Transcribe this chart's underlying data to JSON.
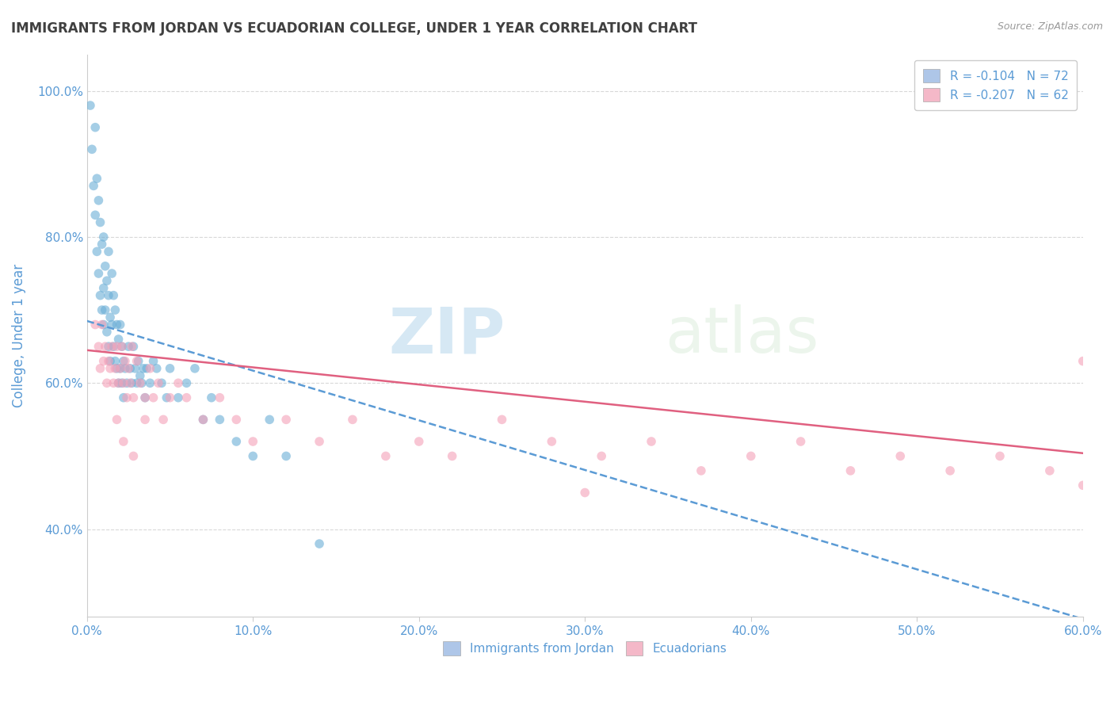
{
  "title": "IMMIGRANTS FROM JORDAN VS ECUADORIAN COLLEGE, UNDER 1 YEAR CORRELATION CHART",
  "source": "Source: ZipAtlas.com",
  "ylabel": "College, Under 1 year",
  "xlim": [
    0.0,
    0.6
  ],
  "ylim": [
    0.28,
    1.05
  ],
  "xticks": [
    0.0,
    0.1,
    0.2,
    0.3,
    0.4,
    0.5,
    0.6
  ],
  "yticks": [
    0.4,
    0.6,
    0.8,
    1.0
  ],
  "xticklabels": [
    "0.0%",
    "10.0%",
    "20.0%",
    "30.0%",
    "40.0%",
    "50.0%",
    "60.0%"
  ],
  "yticklabels": [
    "40.0%",
    "60.0%",
    "80.0%",
    "100.0%"
  ],
  "legend_labels": [
    "R = -0.104   N = 72",
    "R = -0.207   N = 62"
  ],
  "legend_colors": [
    "#aec6e8",
    "#f4b8c8"
  ],
  "series1_color": "#6aaed6",
  "series2_color": "#f4a0b8",
  "trendline1_color": "#5b9bd5",
  "trendline2_color": "#e06080",
  "watermark_text": "ZIP",
  "watermark_text2": "atlas",
  "title_color": "#404040",
  "axis_label_color": "#5b9bd5",
  "tick_label_color": "#5b9bd5",
  "grid_color": "#d8d8d8",
  "jordan_x": [
    0.002,
    0.003,
    0.004,
    0.005,
    0.005,
    0.006,
    0.006,
    0.007,
    0.007,
    0.008,
    0.008,
    0.009,
    0.009,
    0.01,
    0.01,
    0.01,
    0.011,
    0.011,
    0.012,
    0.012,
    0.013,
    0.013,
    0.013,
    0.014,
    0.014,
    0.015,
    0.015,
    0.016,
    0.016,
    0.017,
    0.017,
    0.018,
    0.018,
    0.019,
    0.019,
    0.02,
    0.02,
    0.021,
    0.021,
    0.022,
    0.022,
    0.023,
    0.024,
    0.025,
    0.026,
    0.027,
    0.028,
    0.029,
    0.03,
    0.031,
    0.032,
    0.033,
    0.034,
    0.035,
    0.036,
    0.038,
    0.04,
    0.042,
    0.045,
    0.048,
    0.05,
    0.055,
    0.06,
    0.065,
    0.07,
    0.075,
    0.08,
    0.09,
    0.1,
    0.11,
    0.12,
    0.14
  ],
  "jordan_y": [
    0.98,
    0.92,
    0.87,
    0.95,
    0.83,
    0.88,
    0.78,
    0.85,
    0.75,
    0.82,
    0.72,
    0.79,
    0.7,
    0.8,
    0.73,
    0.68,
    0.76,
    0.7,
    0.74,
    0.67,
    0.72,
    0.65,
    0.78,
    0.69,
    0.63,
    0.75,
    0.68,
    0.72,
    0.65,
    0.7,
    0.63,
    0.68,
    0.62,
    0.66,
    0.6,
    0.68,
    0.62,
    0.65,
    0.6,
    0.63,
    0.58,
    0.62,
    0.6,
    0.65,
    0.62,
    0.6,
    0.65,
    0.62,
    0.6,
    0.63,
    0.61,
    0.6,
    0.62,
    0.58,
    0.62,
    0.6,
    0.63,
    0.62,
    0.6,
    0.58,
    0.62,
    0.58,
    0.6,
    0.62,
    0.55,
    0.58,
    0.55,
    0.52,
    0.5,
    0.55,
    0.5,
    0.38
  ],
  "ecuador_x": [
    0.005,
    0.007,
    0.008,
    0.009,
    0.01,
    0.011,
    0.012,
    0.013,
    0.014,
    0.015,
    0.016,
    0.017,
    0.018,
    0.019,
    0.02,
    0.021,
    0.022,
    0.023,
    0.024,
    0.025,
    0.026,
    0.027,
    0.028,
    0.03,
    0.032,
    0.035,
    0.038,
    0.04,
    0.043,
    0.046,
    0.05,
    0.055,
    0.06,
    0.07,
    0.08,
    0.09,
    0.1,
    0.12,
    0.14,
    0.16,
    0.18,
    0.2,
    0.22,
    0.25,
    0.28,
    0.31,
    0.34,
    0.37,
    0.4,
    0.43,
    0.46,
    0.49,
    0.52,
    0.55,
    0.58,
    0.6,
    0.018,
    0.022,
    0.028,
    0.035,
    0.3,
    0.6
  ],
  "ecuador_y": [
    0.68,
    0.65,
    0.62,
    0.68,
    0.63,
    0.65,
    0.6,
    0.63,
    0.62,
    0.65,
    0.6,
    0.62,
    0.65,
    0.6,
    0.62,
    0.65,
    0.6,
    0.63,
    0.58,
    0.62,
    0.6,
    0.65,
    0.58,
    0.63,
    0.6,
    0.58,
    0.62,
    0.58,
    0.6,
    0.55,
    0.58,
    0.6,
    0.58,
    0.55,
    0.58,
    0.55,
    0.52,
    0.55,
    0.52,
    0.55,
    0.5,
    0.52,
    0.5,
    0.55,
    0.52,
    0.5,
    0.52,
    0.48,
    0.5,
    0.52,
    0.48,
    0.5,
    0.48,
    0.5,
    0.48,
    0.46,
    0.55,
    0.52,
    0.5,
    0.55,
    0.45,
    0.63
  ]
}
